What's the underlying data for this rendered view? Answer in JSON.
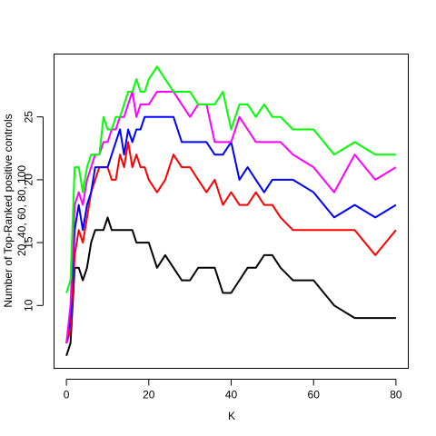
{
  "chart_data": {
    "type": "line",
    "title": "",
    "xlabel": "K",
    "ylabel_lines": [
      "Number of Top-Ranked positive controls",
      "20, 40, 60, 80, 100"
    ],
    "xlim": [
      -3,
      83
    ],
    "ylim": [
      5,
      30
    ],
    "xticks": [
      0,
      20,
      40,
      60,
      80
    ],
    "yticks": [
      10,
      15,
      20,
      25
    ],
    "grid": false,
    "legend": "none",
    "series": [
      {
        "color": "#000000",
        "x": [
          0,
          1,
          2,
          3,
          4,
          5,
          6,
          7,
          8,
          9,
          10,
          11,
          12,
          13,
          14,
          15,
          16,
          17,
          18,
          19,
          20,
          22,
          24,
          26,
          28,
          30,
          32,
          34,
          36,
          38,
          40,
          42,
          44,
          46,
          48,
          50,
          52,
          55,
          60,
          65,
          70,
          75,
          80
        ],
        "y": [
          6,
          7,
          13,
          13,
          12,
          13,
          15,
          16,
          16,
          16,
          17,
          16,
          16,
          16,
          16,
          16,
          16,
          15,
          15,
          15,
          15,
          13,
          14,
          13,
          12,
          12,
          13,
          13,
          13,
          11,
          11,
          12,
          13,
          13,
          14,
          14,
          13,
          12,
          12,
          10,
          9,
          9,
          9
        ]
      },
      {
        "color": "#ff0000",
        "x": [
          0,
          1,
          2,
          3,
          4,
          5,
          6,
          7,
          8,
          9,
          10,
          11,
          12,
          13,
          14,
          15,
          16,
          17,
          18,
          19,
          20,
          22,
          24,
          26,
          28,
          30,
          32,
          34,
          36,
          38,
          40,
          42,
          44,
          46,
          48,
          50,
          52,
          55,
          60,
          65,
          70,
          75,
          80
        ],
        "y": [
          7,
          8,
          14,
          16,
          15,
          17,
          19,
          20,
          21,
          21,
          21,
          20,
          20,
          22,
          21,
          23,
          21,
          22,
          21,
          21,
          20,
          19,
          20,
          22,
          21,
          21,
          20,
          19,
          20,
          18,
          19,
          18,
          18,
          19,
          18,
          18,
          17,
          16,
          16,
          16,
          16,
          14,
          16
        ]
      },
      {
        "color": "#0000ff",
        "x": [
          0,
          1,
          2,
          3,
          4,
          5,
          6,
          7,
          8,
          9,
          10,
          11,
          12,
          13,
          14,
          15,
          16,
          17,
          18,
          19,
          20,
          22,
          24,
          26,
          28,
          30,
          32,
          34,
          36,
          38,
          40,
          42,
          44,
          46,
          48,
          50,
          52,
          55,
          60,
          65,
          70,
          75,
          80
        ],
        "y": [
          7,
          9,
          16,
          18,
          16,
          18,
          19,
          21,
          21,
          21,
          21,
          22,
          23,
          24,
          22,
          24,
          23,
          24,
          24,
          25,
          25,
          25,
          25,
          25,
          23,
          23,
          23,
          23,
          22,
          22,
          23,
          20,
          21,
          20,
          19,
          20,
          20,
          20,
          19,
          17,
          18,
          17,
          18
        ]
      },
      {
        "color": "#ff00ff",
        "x": [
          0,
          1,
          2,
          3,
          4,
          5,
          6,
          7,
          8,
          9,
          10,
          11,
          12,
          13,
          14,
          15,
          16,
          17,
          18,
          19,
          20,
          22,
          24,
          26,
          28,
          30,
          32,
          34,
          36,
          38,
          40,
          42,
          44,
          46,
          48,
          50,
          52,
          55,
          60,
          65,
          70,
          75,
          80
        ],
        "y": [
          7,
          10,
          18,
          19,
          18,
          20,
          21,
          22,
          22,
          23,
          23,
          24,
          24,
          25,
          25,
          26,
          27,
          25,
          26,
          26,
          26,
          27,
          27,
          27,
          26,
          25,
          26,
          26,
          23,
          23,
          23,
          25,
          24,
          23,
          23,
          23,
          23,
          22,
          21,
          19,
          22,
          20,
          21
        ]
      },
      {
        "color": "#00ff00",
        "x": [
          0,
          1,
          2,
          3,
          4,
          5,
          6,
          7,
          8,
          9,
          10,
          11,
          12,
          13,
          14,
          15,
          16,
          17,
          18,
          19,
          20,
          22,
          24,
          26,
          28,
          30,
          32,
          34,
          36,
          38,
          40,
          42,
          44,
          46,
          48,
          50,
          52,
          55,
          60,
          65,
          70,
          75,
          80
        ],
        "y": [
          11,
          12,
          21,
          21,
          19,
          21,
          22,
          22,
          22,
          25,
          24,
          24,
          25,
          25,
          26,
          27,
          27,
          28,
          27,
          27,
          28,
          29,
          28,
          27,
          27,
          27,
          26,
          26,
          26,
          27,
          24,
          26,
          26,
          25,
          26,
          25,
          25,
          24,
          24,
          22,
          23,
          22,
          22
        ]
      }
    ]
  }
}
